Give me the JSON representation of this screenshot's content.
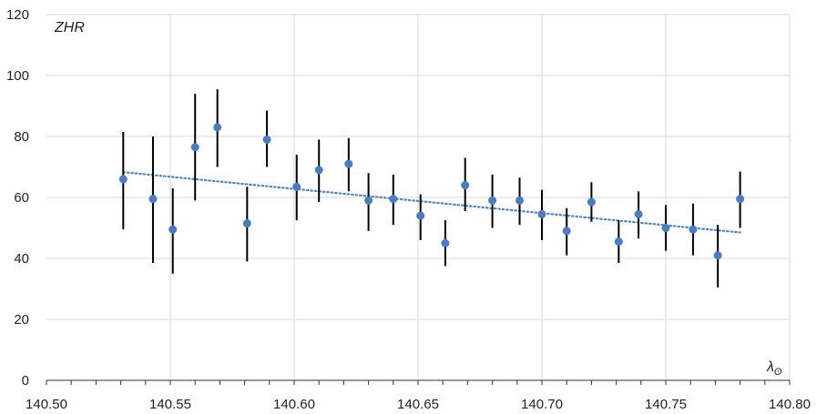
{
  "chart_data": {
    "type": "scatter",
    "title": "",
    "ylabel": "ZHR",
    "xlabel_main": "λ",
    "xlabel_sub": "ʘ",
    "xlim": [
      140.5,
      140.8
    ],
    "ylim": [
      0,
      120
    ],
    "x_ticks": [
      "140.50",
      "140.55",
      "140.60",
      "140.65",
      "140.70",
      "140.75",
      "140.80"
    ],
    "x_tick_values": [
      140.5,
      140.55,
      140.6,
      140.65,
      140.7,
      140.75,
      140.8
    ],
    "y_ticks": [
      "0",
      "20",
      "40",
      "60",
      "80",
      "100",
      "120"
    ],
    "y_tick_values": [
      0,
      20,
      40,
      60,
      80,
      100,
      120
    ],
    "x_minor_step": 0.01,
    "grid": true,
    "legend": "none",
    "points": [
      {
        "x": 140.531,
        "y": 66,
        "low": 49.5,
        "high": 81.5
      },
      {
        "x": 140.543,
        "y": 59.5,
        "low": 38.5,
        "high": 80
      },
      {
        "x": 140.551,
        "y": 49.5,
        "low": 35,
        "high": 63
      },
      {
        "x": 140.56,
        "y": 76.5,
        "low": 59,
        "high": 94
      },
      {
        "x": 140.569,
        "y": 83,
        "low": 70,
        "high": 95.5
      },
      {
        "x": 140.581,
        "y": 51.5,
        "low": 39,
        "high": 63.5
      },
      {
        "x": 140.589,
        "y": 79,
        "low": 70,
        "high": 88.5
      },
      {
        "x": 140.601,
        "y": 63.5,
        "low": 52.5,
        "high": 74
      },
      {
        "x": 140.61,
        "y": 69,
        "low": 58.5,
        "high": 79
      },
      {
        "x": 140.622,
        "y": 71,
        "low": 62,
        "high": 79.5
      },
      {
        "x": 140.63,
        "y": 59,
        "low": 49,
        "high": 68
      },
      {
        "x": 140.64,
        "y": 59.5,
        "low": 51,
        "high": 67.5
      },
      {
        "x": 140.651,
        "y": 54,
        "low": 46,
        "high": 61
      },
      {
        "x": 140.661,
        "y": 45,
        "low": 37.5,
        "high": 52.5
      },
      {
        "x": 140.669,
        "y": 64,
        "low": 55.5,
        "high": 73
      },
      {
        "x": 140.68,
        "y": 59,
        "low": 50,
        "high": 67.5
      },
      {
        "x": 140.691,
        "y": 59,
        "low": 51,
        "high": 66.5
      },
      {
        "x": 140.7,
        "y": 54.5,
        "low": 46,
        "high": 62.5
      },
      {
        "x": 140.71,
        "y": 49,
        "low": 41,
        "high": 56.5
      },
      {
        "x": 140.72,
        "y": 58.5,
        "low": 52,
        "high": 65
      },
      {
        "x": 140.731,
        "y": 45.5,
        "low": 38.5,
        "high": 52.5
      },
      {
        "x": 140.739,
        "y": 54.5,
        "low": 46.5,
        "high": 62
      },
      {
        "x": 140.75,
        "y": 50,
        "low": 42.5,
        "high": 57.5
      },
      {
        "x": 140.761,
        "y": 49.5,
        "low": 41,
        "high": 58
      },
      {
        "x": 140.771,
        "y": 41,
        "low": 30.5,
        "high": 51
      },
      {
        "x": 140.78,
        "y": 59.5,
        "low": 50,
        "high": 68.5
      }
    ],
    "trendline": {
      "type": "linear",
      "x": [
        140.531,
        140.78
      ],
      "y": [
        68.3,
        48.5
      ]
    },
    "colors": {
      "point": "#4a7cc1",
      "errorbar": "#000000",
      "trendline": "#4f86c6",
      "grid": "#d9d9d9",
      "axis": "#333333"
    }
  }
}
